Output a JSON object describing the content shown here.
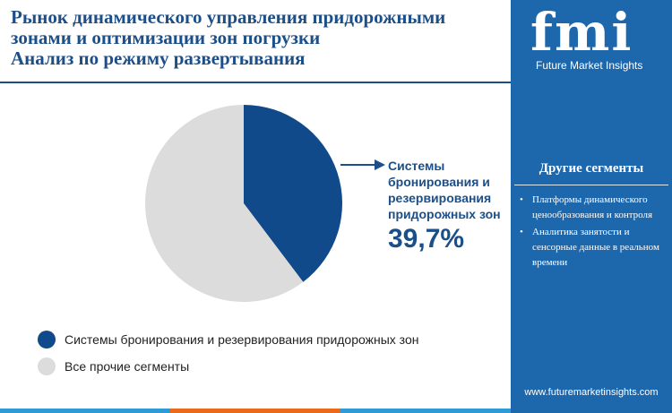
{
  "header": {
    "title_lines": [
      "Рынок динамического управления придорожными",
      "зонами и оптимизации зон погрузки",
      "Анализ по режиму развертывания"
    ]
  },
  "brand": {
    "logo_text": "fmi",
    "logo_subtitle": "Future Market Insights",
    "url": "www.futuremarketinsights.com"
  },
  "side_panel": {
    "heading": "Другие сегменты",
    "items": [
      "Платформы динамического ценообразования и контроля",
      "Аналитика занятости и сенсорные данные в реальном времени"
    ],
    "bullet": "•"
  },
  "callout": {
    "label": "Системы бронирования и резервирования придорожных зон",
    "value": "39,7%"
  },
  "chart_data": {
    "type": "pie",
    "slices": [
      {
        "label": "Системы бронирования и резервирования придорожных зон",
        "value": 39.7,
        "color": "#104a8a"
      },
      {
        "label": "Все прочие сегменты",
        "value": 60.3,
        "color": "#dcdcdc"
      }
    ],
    "start_angle": "12 o'clock",
    "direction": "clockwise",
    "legend_position": "bottom-left"
  },
  "colors": {
    "primary": "#1b4f8a",
    "panel": "#1d67ad",
    "bar_segments": [
      "#2e9bd6",
      "#e86a1a",
      "#2e9bd6",
      "#1d67ad"
    ]
  }
}
